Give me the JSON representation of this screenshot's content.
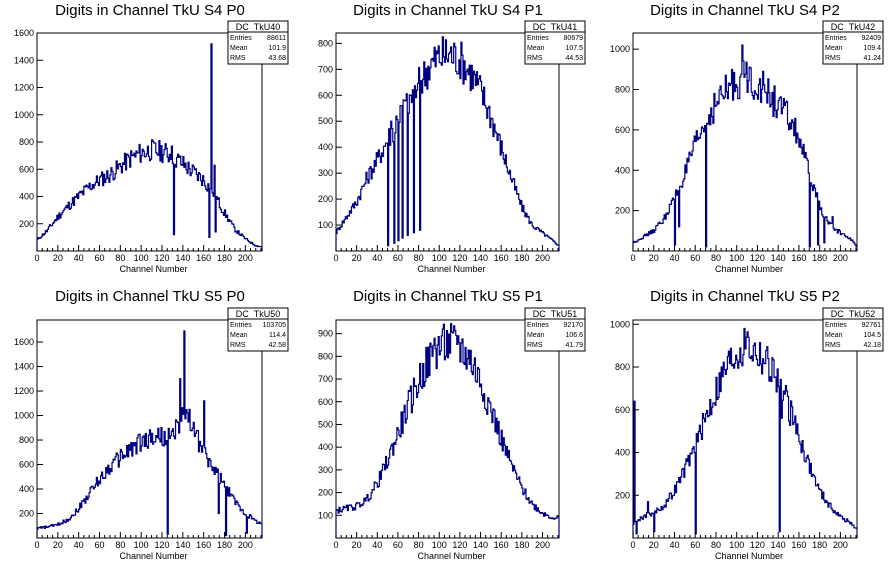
{
  "colors": {
    "line": "#000080",
    "axis": "#000000",
    "bg": "#ffffff"
  },
  "chart_data": [
    {
      "type": "histogram",
      "title": "Digits in Channel TkU S4 P0",
      "xlabel": "Channel Number",
      "xlim": [
        0,
        216
      ],
      "ylim": [
        0,
        1600
      ],
      "xticks": [
        "0",
        "20",
        "40",
        "60",
        "80",
        "100",
        "120",
        "140",
        "160",
        "180",
        "200"
      ],
      "yticks": [
        "200",
        "400",
        "600",
        "800",
        "1000",
        "1200",
        "1400",
        "1600"
      ],
      "stats": {
        "name": "DC_TkU40",
        "rows": [
          [
            "Entries",
            "88611"
          ],
          [
            "Mean",
            "101.9"
          ],
          [
            "RMS",
            "43.68"
          ]
        ]
      },
      "profile": [
        [
          0,
          80
        ],
        [
          10,
          150
        ],
        [
          20,
          250
        ],
        [
          30,
          330
        ],
        [
          40,
          400
        ],
        [
          50,
          470
        ],
        [
          60,
          520
        ],
        [
          70,
          560
        ],
        [
          80,
          620
        ],
        [
          90,
          680
        ],
        [
          100,
          720
        ],
        [
          110,
          740
        ],
        [
          120,
          730
        ],
        [
          130,
          700
        ],
        [
          140,
          640
        ],
        [
          150,
          580
        ],
        [
          160,
          520
        ],
        [
          170,
          420
        ],
        [
          180,
          280
        ],
        [
          190,
          160
        ],
        [
          200,
          90
        ],
        [
          210,
          40
        ],
        [
          216,
          30
        ]
      ],
      "spikes": [
        [
          129,
          770
        ],
        [
          131,
          120
        ],
        [
          165,
          100
        ],
        [
          167,
          1520
        ],
        [
          170,
          630
        ],
        [
          171,
          140
        ]
      ]
    },
    {
      "type": "histogram",
      "title": "Digits in Channel TkU S4 P1",
      "xlabel": "Channel Number",
      "xlim": [
        0,
        216
      ],
      "ylim": [
        0,
        840
      ],
      "xticks": [
        "0",
        "20",
        "40",
        "60",
        "80",
        "100",
        "120",
        "140",
        "160",
        "180",
        "200"
      ],
      "yticks": [
        "100",
        "200",
        "300",
        "400",
        "500",
        "600",
        "700",
        "800"
      ],
      "stats": {
        "name": "DC_TkU41",
        "rows": [
          [
            "Entries",
            "80679"
          ],
          [
            "Mean",
            "107.5"
          ],
          [
            "RMS",
            "44.53"
          ]
        ]
      },
      "profile": [
        [
          0,
          70
        ],
        [
          10,
          130
        ],
        [
          20,
          190
        ],
        [
          30,
          280
        ],
        [
          40,
          350
        ],
        [
          50,
          430
        ],
        [
          60,
          500
        ],
        [
          70,
          580
        ],
        [
          80,
          640
        ],
        [
          90,
          710
        ],
        [
          100,
          750
        ],
        [
          110,
          760
        ],
        [
          120,
          740
        ],
        [
          130,
          690
        ],
        [
          140,
          620
        ],
        [
          150,
          520
        ],
        [
          160,
          400
        ],
        [
          170,
          280
        ],
        [
          180,
          170
        ],
        [
          190,
          100
        ],
        [
          200,
          70
        ],
        [
          210,
          40
        ],
        [
          216,
          20
        ]
      ],
      "spikes": [
        [
          50,
          20
        ],
        [
          53,
          500
        ],
        [
          56,
          30
        ],
        [
          58,
          520
        ],
        [
          60,
          40
        ],
        [
          62,
          560
        ],
        [
          64,
          50
        ],
        [
          66,
          580
        ],
        [
          69,
          60
        ],
        [
          72,
          600
        ],
        [
          75,
          70
        ],
        [
          78,
          620
        ],
        [
          81,
          80
        ]
      ]
    },
    {
      "type": "histogram",
      "title": "Digits in Channel TkU S4 P2",
      "xlabel": "Channel Number",
      "xlim": [
        0,
        216
      ],
      "ylim": [
        0,
        1080
      ],
      "xticks": [
        "0",
        "20",
        "40",
        "60",
        "80",
        "100",
        "120",
        "140",
        "160",
        "180",
        "200"
      ],
      "yticks": [
        "200",
        "400",
        "600",
        "800",
        "1000"
      ],
      "stats": {
        "name": "DC_TkU42",
        "rows": [
          [
            "Entries",
            "92409"
          ],
          [
            "Mean",
            "109.4"
          ],
          [
            "RMS",
            "41.24"
          ]
        ]
      },
      "profile": [
        [
          0,
          40
        ],
        [
          10,
          70
        ],
        [
          20,
          100
        ],
        [
          30,
          160
        ],
        [
          40,
          260
        ],
        [
          50,
          380
        ],
        [
          60,
          520
        ],
        [
          70,
          640
        ],
        [
          80,
          730
        ],
        [
          90,
          790
        ],
        [
          100,
          840
        ],
        [
          110,
          860
        ],
        [
          120,
          830
        ],
        [
          130,
          780
        ],
        [
          140,
          720
        ],
        [
          150,
          660
        ],
        [
          160,
          560
        ],
        [
          170,
          380
        ],
        [
          180,
          220
        ],
        [
          190,
          130
        ],
        [
          200,
          90
        ],
        [
          210,
          60
        ],
        [
          216,
          20
        ]
      ],
      "spikes": [
        [
          40,
          30
        ],
        [
          44,
          120
        ],
        [
          70,
          20
        ],
        [
          105,
          1020
        ],
        [
          170,
          20
        ],
        [
          178,
          30
        ],
        [
          184,
          40
        ],
        [
          192,
          170
        ]
      ]
    },
    {
      "type": "histogram",
      "title": "Digits in Channel TkU S5 P0",
      "xlabel": "Channel Number",
      "xlim": [
        0,
        216
      ],
      "ylim": [
        0,
        1780
      ],
      "xticks": [
        "0",
        "20",
        "40",
        "60",
        "80",
        "100",
        "120",
        "140",
        "160",
        "180",
        "200"
      ],
      "yticks": [
        "200",
        "400",
        "600",
        "800",
        "1000",
        "1200",
        "1400",
        "1600"
      ],
      "stats": {
        "name": "DC_TkU50",
        "rows": [
          [
            "Entries",
            "103705"
          ],
          [
            "Mean",
            "114.4"
          ],
          [
            "RMS",
            "42.58"
          ]
        ]
      },
      "profile": [
        [
          0,
          80
        ],
        [
          10,
          90
        ],
        [
          20,
          110
        ],
        [
          30,
          150
        ],
        [
          40,
          240
        ],
        [
          50,
          360
        ],
        [
          60,
          480
        ],
        [
          70,
          580
        ],
        [
          80,
          660
        ],
        [
          90,
          730
        ],
        [
          100,
          780
        ],
        [
          110,
          820
        ],
        [
          120,
          830
        ],
        [
          130,
          820
        ],
        [
          140,
          1000
        ],
        [
          150,
          900
        ],
        [
          160,
          700
        ],
        [
          170,
          560
        ],
        [
          180,
          430
        ],
        [
          190,
          300
        ],
        [
          200,
          200
        ],
        [
          210,
          140
        ],
        [
          216,
          120
        ]
      ],
      "spikes": [
        [
          125,
          30
        ],
        [
          141,
          1690
        ],
        [
          137,
          1300
        ],
        [
          146,
          1050
        ],
        [
          160,
          1120
        ],
        [
          174,
          200
        ],
        [
          181,
          20
        ],
        [
          201,
          40
        ]
      ]
    },
    {
      "type": "histogram",
      "title": "Digits in Channel TkU S5 P1",
      "xlabel": "Channel Number",
      "xlim": [
        0,
        216
      ],
      "ylim": [
        0,
        960
      ],
      "xticks": [
        "0",
        "20",
        "40",
        "60",
        "80",
        "100",
        "120",
        "140",
        "160",
        "180",
        "200"
      ],
      "yticks": [
        "100",
        "200",
        "300",
        "400",
        "500",
        "600",
        "700",
        "800",
        "900"
      ],
      "stats": {
        "name": "DC_TkU51",
        "rows": [
          [
            "Entries",
            "92170"
          ],
          [
            "Mean",
            "106.6"
          ],
          [
            "RMS",
            "41.79"
          ]
        ]
      },
      "profile": [
        [
          0,
          120
        ],
        [
          10,
          130
        ],
        [
          20,
          140
        ],
        [
          30,
          170
        ],
        [
          40,
          240
        ],
        [
          50,
          340
        ],
        [
          60,
          460
        ],
        [
          70,
          580
        ],
        [
          80,
          690
        ],
        [
          90,
          780
        ],
        [
          100,
          840
        ],
        [
          110,
          860
        ],
        [
          120,
          840
        ],
        [
          130,
          790
        ],
        [
          140,
          690
        ],
        [
          150,
          570
        ],
        [
          160,
          440
        ],
        [
          170,
          320
        ],
        [
          180,
          220
        ],
        [
          190,
          150
        ],
        [
          200,
          110
        ],
        [
          210,
          90
        ],
        [
          216,
          90
        ]
      ],
      "spikes": [
        [
          95,
          880
        ],
        [
          102,
          890
        ],
        [
          118,
          890
        ]
      ]
    },
    {
      "type": "histogram",
      "title": "Digits in Channel TkU S5 P2",
      "xlabel": "Channel Number",
      "xlim": [
        0,
        216
      ],
      "ylim": [
        0,
        1020
      ],
      "xticks": [
        "0",
        "20",
        "40",
        "60",
        "80",
        "100",
        "120",
        "140",
        "160",
        "180",
        "200"
      ],
      "yticks": [
        "200",
        "400",
        "600",
        "800",
        "1000"
      ],
      "stats": {
        "name": "DC_TkU52",
        "rows": [
          [
            "Entries",
            "92761"
          ],
          [
            "Mean",
            "104.5"
          ],
          [
            "RMS",
            "42.18"
          ]
        ]
      },
      "profile": [
        [
          0,
          70
        ],
        [
          10,
          100
        ],
        [
          20,
          120
        ],
        [
          30,
          150
        ],
        [
          40,
          220
        ],
        [
          50,
          320
        ],
        [
          60,
          430
        ],
        [
          70,
          560
        ],
        [
          80,
          690
        ],
        [
          90,
          800
        ],
        [
          100,
          870
        ],
        [
          110,
          900
        ],
        [
          120,
          870
        ],
        [
          130,
          820
        ],
        [
          140,
          740
        ],
        [
          150,
          610
        ],
        [
          160,
          480
        ],
        [
          170,
          340
        ],
        [
          180,
          220
        ],
        [
          190,
          150
        ],
        [
          200,
          100
        ],
        [
          210,
          70
        ],
        [
          216,
          40
        ]
      ],
      "spikes": [
        [
          1,
          640
        ],
        [
          3,
          20
        ],
        [
          14,
          170
        ],
        [
          20,
          30
        ],
        [
          60,
          20
        ],
        [
          109,
          940
        ],
        [
          141,
          30
        ],
        [
          143,
          560
        ]
      ]
    }
  ]
}
